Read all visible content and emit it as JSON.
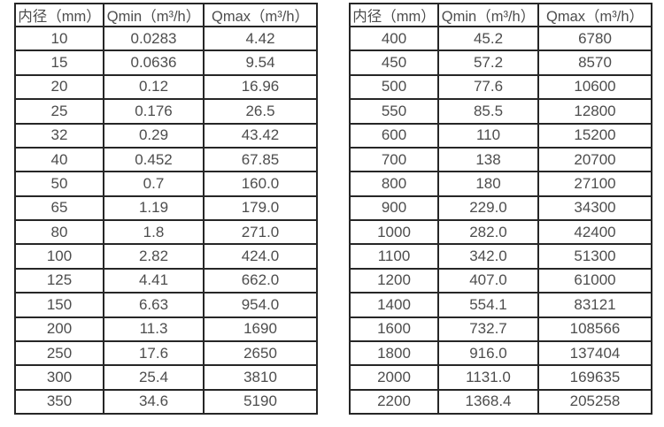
{
  "accent_colors": {
    "border": "#262626",
    "text": "#4d4d4d",
    "background": "#ffffff"
  },
  "tables": [
    {
      "name": "flow-table-small-diameters",
      "headers": [
        "内径（mm）",
        "Qmin（m³/h）",
        "Qmax（m³/h）"
      ],
      "rows": [
        [
          "10",
          "0.0283",
          "4.42"
        ],
        [
          "15",
          "0.0636",
          "9.54"
        ],
        [
          "20",
          "0.12",
          "16.96"
        ],
        [
          "25",
          "0.176",
          "26.5"
        ],
        [
          "32",
          "0.29",
          "43.42"
        ],
        [
          "40",
          "0.452",
          "67.85"
        ],
        [
          "50",
          "0.7",
          "160.0"
        ],
        [
          "65",
          "1.19",
          "179.0"
        ],
        [
          "80",
          "1.8",
          "271.0"
        ],
        [
          "100",
          "2.82",
          "424.0"
        ],
        [
          "125",
          "4.41",
          "662.0"
        ],
        [
          "150",
          "6.63",
          "954.0"
        ],
        [
          "200",
          "11.3",
          "1690"
        ],
        [
          "250",
          "17.6",
          "2650"
        ],
        [
          "300",
          "25.4",
          "3810"
        ],
        [
          "350",
          "34.6",
          "5190"
        ]
      ]
    },
    {
      "name": "flow-table-large-diameters",
      "headers": [
        "内径（mm）",
        "Qmin（m³/h）",
        "Qmax（m³/h）"
      ],
      "rows": [
        [
          "400",
          "45.2",
          "6780"
        ],
        [
          "450",
          "57.2",
          "8570"
        ],
        [
          "500",
          "77.6",
          "10600"
        ],
        [
          "550",
          "85.5",
          "12800"
        ],
        [
          "600",
          "110",
          "15200"
        ],
        [
          "700",
          "138",
          "20700"
        ],
        [
          "800",
          "180",
          "27100"
        ],
        [
          "900",
          "229.0",
          "34300"
        ],
        [
          "1000",
          "282.0",
          "42400"
        ],
        [
          "1100",
          "342.0",
          "51300"
        ],
        [
          "1200",
          "407.0",
          "61000"
        ],
        [
          "1400",
          "554.1",
          "83121"
        ],
        [
          "1600",
          "732.7",
          "108566"
        ],
        [
          "1800",
          "916.0",
          "137404"
        ],
        [
          "2000",
          "1131.0",
          "169635"
        ],
        [
          "2200",
          "1368.4",
          "205258"
        ]
      ]
    }
  ]
}
